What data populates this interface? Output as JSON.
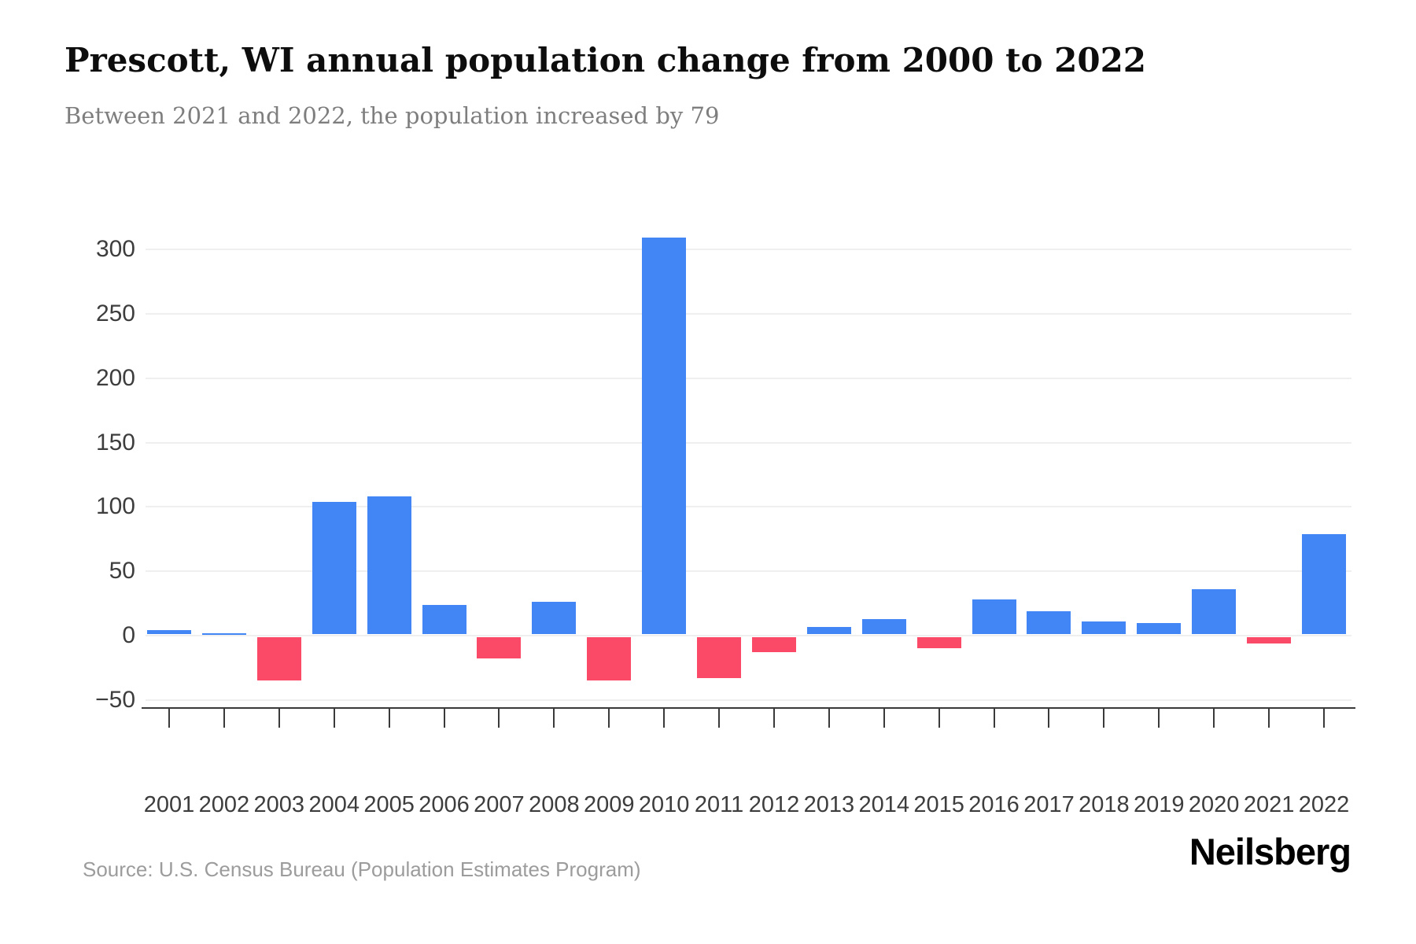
{
  "header": {
    "title": "Prescott, WI annual population change from 2000 to 2022",
    "subtitle": "Between 2021 and 2022, the population increased by 79"
  },
  "footer": {
    "source": "Source: U.S. Census Bureau (Population Estimates Program)",
    "logo": "Neilsberg"
  },
  "chart_data": {
    "type": "bar",
    "title": "Prescott, WI annual population change from 2000 to 2022",
    "subtitle": "Between 2021 and 2022, the population increased by 79",
    "categories": [
      "2001",
      "2002",
      "2003",
      "2004",
      "2005",
      "2006",
      "2007",
      "2008",
      "2009",
      "2010",
      "2011",
      "2012",
      "2013",
      "2014",
      "2015",
      "2016",
      "2017",
      "2018",
      "2019",
      "2020",
      "2021",
      "2022"
    ],
    "values": [
      4,
      2,
      -35,
      104,
      108,
      24,
      -18,
      26,
      -35,
      309,
      -33,
      -13,
      7,
      13,
      -10,
      28,
      19,
      11,
      10,
      36,
      -6,
      79
    ],
    "xlabel": "",
    "ylabel": "",
    "ylim": [
      -50,
      320
    ],
    "yticks": [
      300,
      250,
      200,
      150,
      100,
      50,
      0,
      -50
    ],
    "grid": "horizontal",
    "legend": "none",
    "colors": {
      "positive_bar": "#4285F4",
      "negative_bar": "#FA4A67",
      "gridline": "#efefef",
      "axis": "#3a3a3a",
      "tick_label": "#3d3d3d"
    }
  }
}
